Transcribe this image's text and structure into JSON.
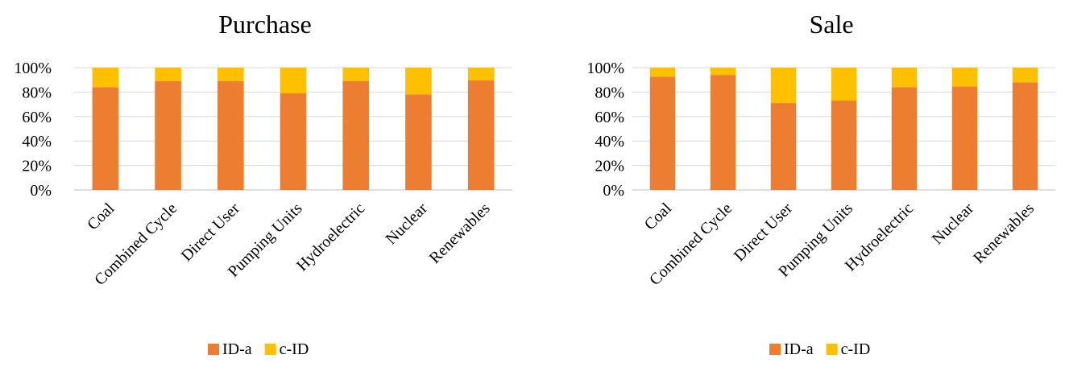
{
  "chart_data": [
    {
      "type": "bar",
      "stacked": "percent",
      "title": "Purchase",
      "xlabel": "",
      "ylabel": "",
      "categories": [
        "Coal",
        "Combined Cycle",
        "Direct User",
        "Pumping Units",
        "Hydroelectric",
        "Nuclear",
        "Renewables"
      ],
      "series": [
        {
          "name": "ID-a",
          "color": "#ED7D31",
          "values": [
            84,
            89,
            89,
            79,
            89,
            78,
            89.5
          ]
        },
        {
          "name": "c-ID",
          "color": "#FFC000",
          "values": [
            16,
            11,
            11,
            21,
            11,
            22,
            10.5
          ]
        }
      ],
      "ylim": [
        0,
        100
      ],
      "yticks": [
        "0%",
        "20%",
        "40%",
        "60%",
        "80%",
        "100%"
      ],
      "grid": true,
      "legend": "bottom"
    },
    {
      "type": "bar",
      "stacked": "percent",
      "title": "Sale",
      "xlabel": "",
      "ylabel": "",
      "categories": [
        "Coal",
        "Combined Cycle",
        "Direct User",
        "Pumping Units",
        "Hydroelectric",
        "Nuclear",
        "Renewables"
      ],
      "series": [
        {
          "name": "ID-a",
          "color": "#ED7D31",
          "values": [
            92.5,
            94,
            71,
            73,
            84,
            84.5,
            88
          ]
        },
        {
          "name": "c-ID",
          "color": "#FFC000",
          "values": [
            7.5,
            6,
            29,
            27,
            16,
            15.5,
            12
          ]
        }
      ],
      "ylim": [
        0,
        100
      ],
      "yticks": [
        "0%",
        "20%",
        "40%",
        "60%",
        "80%",
        "100%"
      ],
      "grid": true,
      "legend": "bottom"
    }
  ]
}
